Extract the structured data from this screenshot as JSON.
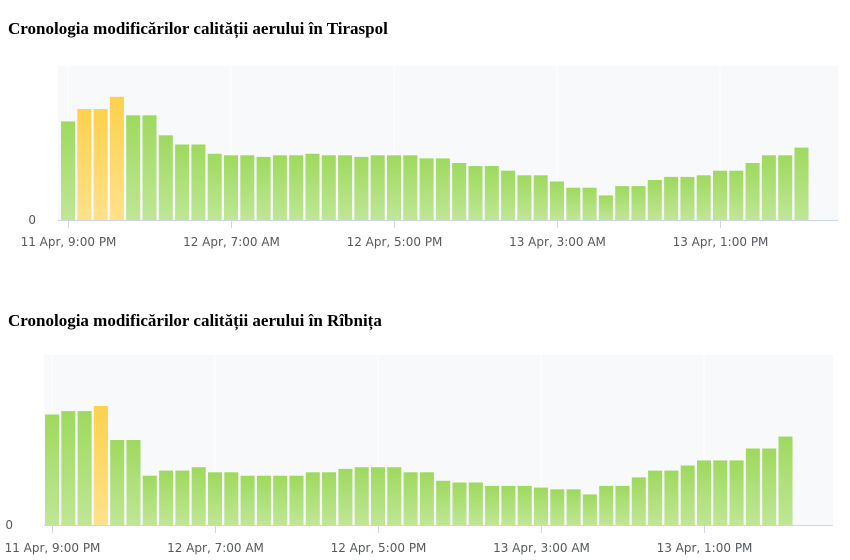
{
  "chart_data": [
    {
      "type": "bar",
      "title": "Cronologia modificărilor calității aerului în Tiraspol",
      "x_tick_labels": [
        "11 Apr, 9:00 PM",
        "12 Apr, 7:00 AM",
        "12 Apr, 5:00 PM",
        "13 Apr, 3:00 AM",
        "13 Apr, 1:00 PM"
      ],
      "x_tick_indices": [
        0,
        10,
        20,
        30,
        40
      ],
      "y_tick_labels": [
        "0"
      ],
      "ylim": [
        0,
        100
      ],
      "grid": true,
      "values": [
        64,
        72,
        72,
        80,
        68,
        68,
        55,
        49,
        49,
        43,
        42,
        42,
        41,
        42,
        42,
        43,
        42,
        42,
        41,
        42,
        42,
        42,
        40,
        40,
        37,
        35,
        35,
        32,
        29,
        29,
        25,
        21,
        21,
        16,
        22,
        22,
        26,
        28,
        28,
        29,
        32,
        32,
        37,
        42,
        42,
        47
      ],
      "level_colors": [
        "good",
        "moderate",
        "moderate",
        "moderate",
        "good",
        "good",
        "good",
        "good",
        "good",
        "good",
        "good",
        "good",
        "good",
        "good",
        "good",
        "good",
        "good",
        "good",
        "good",
        "good",
        "good",
        "good",
        "good",
        "good",
        "good",
        "good",
        "good",
        "good",
        "good",
        "good",
        "good",
        "good",
        "good",
        "good",
        "good",
        "good",
        "good",
        "good",
        "good",
        "good",
        "good",
        "good",
        "good",
        "good",
        "good",
        "good"
      ],
      "colors": {
        "good": "#9ed95e",
        "moderate": "#fdd14d",
        "plot_background": "#f7f9fa",
        "grid": "#ffffff",
        "axis": "#ccd6eb",
        "text": "#555a5e"
      }
    },
    {
      "type": "bar",
      "title": "Cronologia modificărilor calității aerului în Rîbnița",
      "x_tick_labels": [
        "11 Apr, 9:00 PM",
        "12 Apr, 7:00 AM",
        "12 Apr, 5:00 PM",
        "13 Apr, 3:00 AM",
        "13 Apr, 1:00 PM"
      ],
      "x_tick_indices": [
        0,
        10,
        20,
        30,
        40
      ],
      "y_tick_labels": [
        "0"
      ],
      "ylim": [
        0,
        100
      ],
      "grid": true,
      "values": [
        65,
        67,
        67,
        70,
        50,
        50,
        29,
        32,
        32,
        34,
        31,
        31,
        29,
        29,
        29,
        29,
        31,
        31,
        33,
        34,
        34,
        34,
        31,
        31,
        26,
        25,
        25,
        23,
        23,
        23,
        22,
        21,
        21,
        18,
        23,
        23,
        28,
        32,
        32,
        35,
        38,
        38,
        38,
        45,
        45,
        52
      ],
      "level_colors": [
        "good",
        "good",
        "good",
        "moderate",
        "good",
        "good",
        "good",
        "good",
        "good",
        "good",
        "good",
        "good",
        "good",
        "good",
        "good",
        "good",
        "good",
        "good",
        "good",
        "good",
        "good",
        "good",
        "good",
        "good",
        "good",
        "good",
        "good",
        "good",
        "good",
        "good",
        "good",
        "good",
        "good",
        "good",
        "good",
        "good",
        "good",
        "good",
        "good",
        "good",
        "good",
        "good",
        "good",
        "good",
        "good",
        "good"
      ],
      "colors": {
        "good": "#9ed95e",
        "moderate": "#fdd14d",
        "plot_background": "#f7f9fa",
        "grid": "#ffffff",
        "axis": "#ccd6eb",
        "text": "#555a5e"
      }
    }
  ]
}
